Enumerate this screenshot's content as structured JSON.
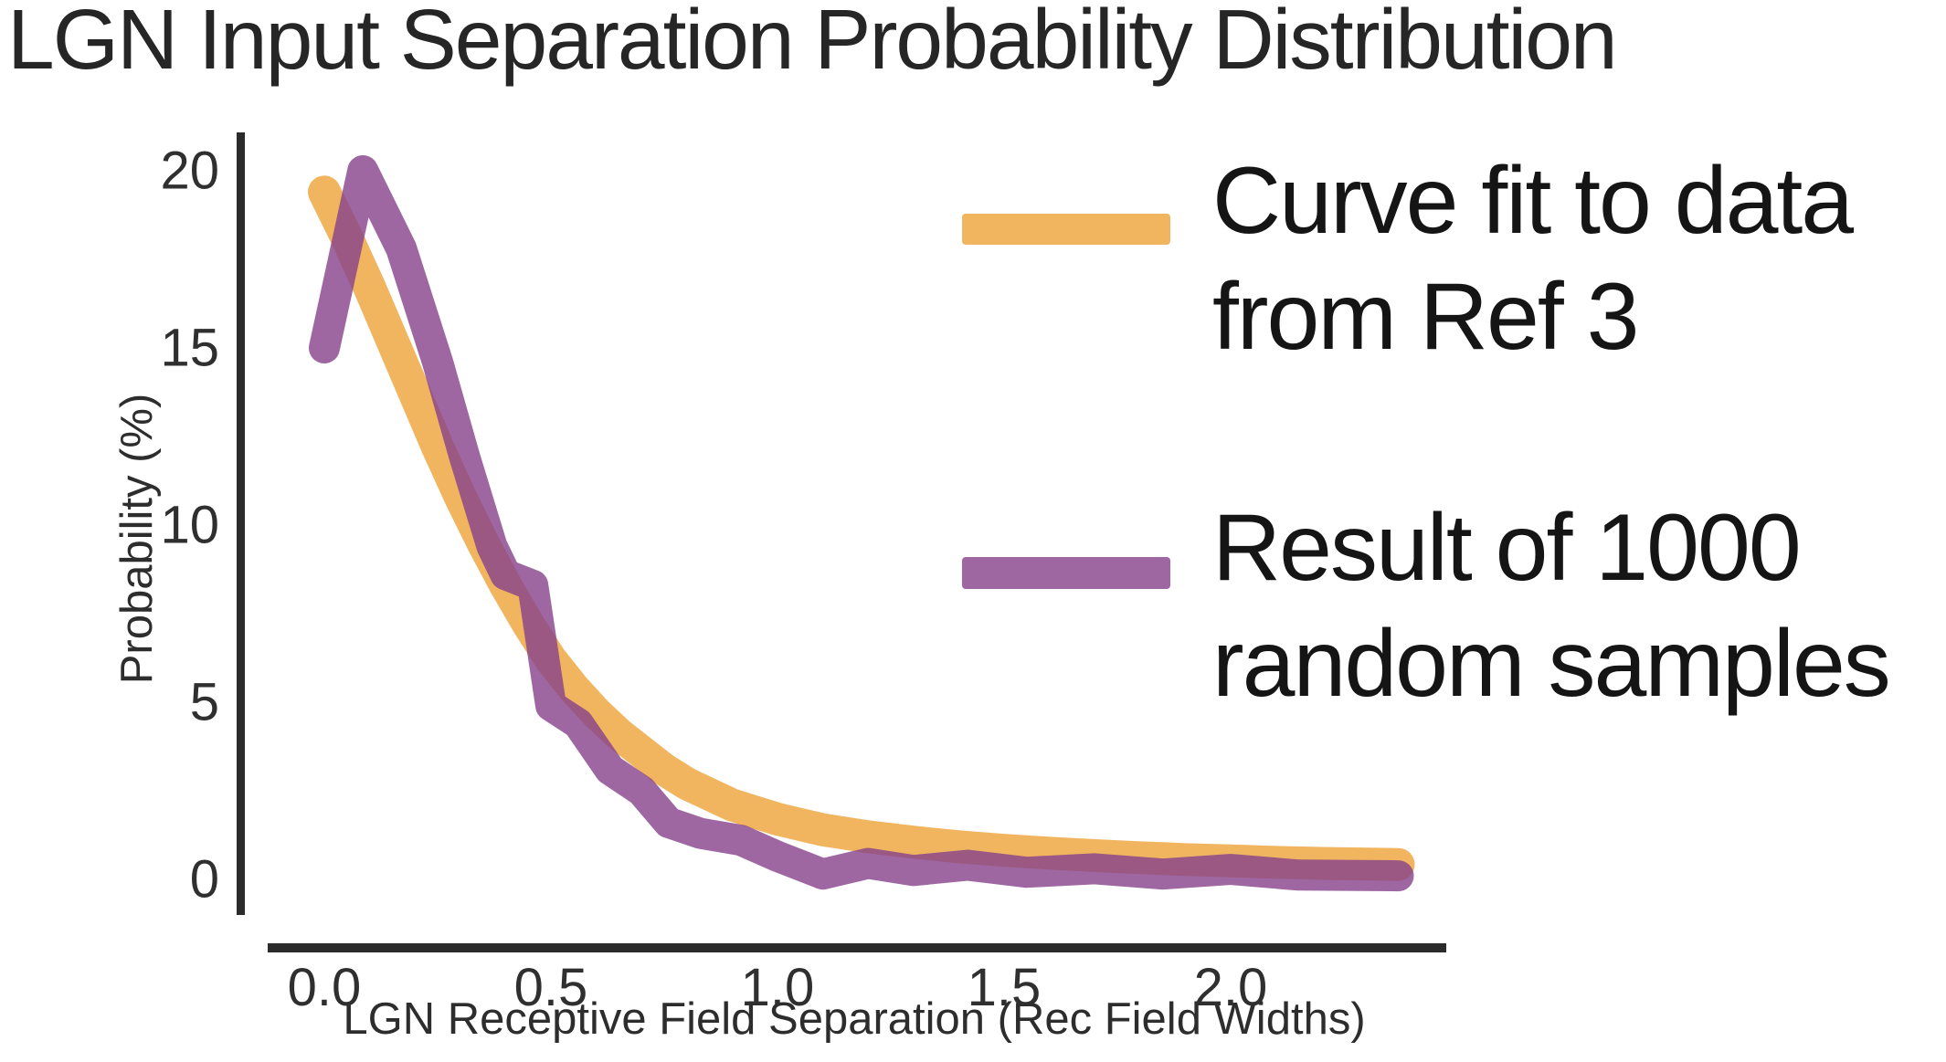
{
  "title": "LGN Input Separation Probability Distribution",
  "legend": {
    "items": [
      {
        "name": "curve-fit",
        "color": "#F1B55F",
        "lines": [
          "Curve fit to data",
          "from Ref 3"
        ]
      },
      {
        "name": "random-samples",
        "color": "#9E67A2",
        "lines": [
          "Result of 1000",
          "random samples"
        ]
      }
    ]
  },
  "chart_data": {
    "type": "line",
    "title": "LGN Input Separation Probability Distribution",
    "xlabel": "LGN Receptive Field Separation (Rec Field Widths)",
    "ylabel": "Probability (%)",
    "xlim": [
      -0.13,
      2.47
    ],
    "ylim": [
      -1,
      21
    ],
    "grid": false,
    "legend_position": "upper right",
    "x_ticks": [
      0.0,
      0.5,
      1.0,
      1.5,
      2.0
    ],
    "x_tick_labels": [
      "0.0",
      "0.5",
      "1.0",
      "1.5",
      "2.0"
    ],
    "y_ticks": [
      0,
      5,
      10,
      15,
      20
    ],
    "y_tick_labels": [
      "0",
      "5",
      "10",
      "15",
      "20"
    ],
    "axis_color": "#2b2b2b",
    "series": [
      {
        "name": "Curve fit to data from Ref 3",
        "color": "#F1B55F",
        "opacity": 1.0,
        "stroke_width": 36,
        "points": [
          [
            0.0,
            19.4
          ],
          [
            0.05,
            18.1
          ],
          [
            0.1,
            16.7
          ],
          [
            0.15,
            15.2
          ],
          [
            0.2,
            13.7
          ],
          [
            0.25,
            12.2
          ],
          [
            0.3,
            10.8
          ],
          [
            0.35,
            9.5
          ],
          [
            0.4,
            8.3
          ],
          [
            0.45,
            7.2
          ],
          [
            0.5,
            6.2
          ],
          [
            0.55,
            5.4
          ],
          [
            0.6,
            4.7
          ],
          [
            0.65,
            4.1
          ],
          [
            0.7,
            3.6
          ],
          [
            0.75,
            3.1
          ],
          [
            0.8,
            2.7
          ],
          [
            0.85,
            2.4
          ],
          [
            0.9,
            2.1
          ],
          [
            0.95,
            1.9
          ],
          [
            1.0,
            1.7
          ],
          [
            1.1,
            1.4
          ],
          [
            1.2,
            1.2
          ],
          [
            1.3,
            1.05
          ],
          [
            1.4,
            0.92
          ],
          [
            1.5,
            0.82
          ],
          [
            1.6,
            0.74
          ],
          [
            1.7,
            0.67
          ],
          [
            1.8,
            0.61
          ],
          [
            1.9,
            0.56
          ],
          [
            2.0,
            0.52
          ],
          [
            2.1,
            0.48
          ],
          [
            2.2,
            0.45
          ],
          [
            2.37,
            0.42
          ]
        ]
      },
      {
        "name": "Result of 1000 random samples",
        "color": "#86418B",
        "opacity": 0.8,
        "stroke_width": 34,
        "points": [
          [
            0.0,
            15.0
          ],
          [
            0.085,
            20.0
          ],
          [
            0.17,
            17.8
          ],
          [
            0.25,
            14.6
          ],
          [
            0.31,
            11.9
          ],
          [
            0.37,
            9.4
          ],
          [
            0.4,
            8.6
          ],
          [
            0.46,
            8.3
          ],
          [
            0.5,
            4.9
          ],
          [
            0.56,
            4.4
          ],
          [
            0.63,
            3.1
          ],
          [
            0.7,
            2.5
          ],
          [
            0.76,
            1.6
          ],
          [
            0.83,
            1.3
          ],
          [
            0.92,
            1.1
          ],
          [
            1.0,
            0.65
          ],
          [
            1.1,
            0.15
          ],
          [
            1.2,
            0.45
          ],
          [
            1.3,
            0.25
          ],
          [
            1.42,
            0.4
          ],
          [
            1.55,
            0.2
          ],
          [
            1.7,
            0.3
          ],
          [
            1.85,
            0.15
          ],
          [
            2.0,
            0.28
          ],
          [
            2.15,
            0.12
          ],
          [
            2.37,
            0.1
          ]
        ]
      }
    ]
  }
}
